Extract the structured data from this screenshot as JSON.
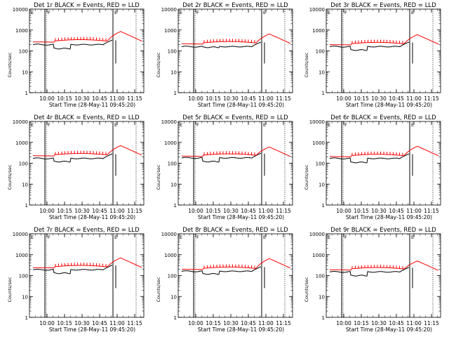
{
  "chart_data": [
    {
      "type": "line",
      "title": "Det 1r BLACK = Events, RED = LLD",
      "xlabel": "Start Time (28-May-11 09:45:20)",
      "ylabel": "Counts/sec",
      "yscale": "log",
      "ylim": [
        1,
        10000
      ],
      "xlim": [
        9.75,
        11.38
      ],
      "xticks": [
        "10:00",
        "10:15",
        "10:30",
        "10:45",
        "11:00",
        "11:15"
      ],
      "yticks": [
        "1",
        "10",
        "100",
        "1000",
        "10000"
      ],
      "flags": [
        "E",
        "F",
        "E"
      ],
      "series": [
        {
          "color": "#000000",
          "base": 200,
          "step_low": 130
        },
        {
          "color": "#ff0000",
          "base": 270,
          "peak": 850
        }
      ]
    },
    {
      "type": "line",
      "title": "Det 2r BLACK = Events, RED = LLD",
      "xlabel": "Start Time (28-May-11 09:45:20)",
      "ylabel": "Counts/sec",
      "yscale": "log",
      "ylim": [
        1,
        10000
      ],
      "xlim": [
        9.75,
        11.38
      ],
      "xticks": [
        "10:00",
        "10:15",
        "10:30",
        "10:45",
        "11:00",
        "11:15"
      ],
      "yticks": [
        "1",
        "10",
        "100",
        "1000",
        "10000"
      ],
      "flags": [
        "E",
        "F",
        "E"
      ],
      "series": [
        {
          "color": "#000000",
          "base": 160,
          "step_low": 150
        },
        {
          "color": "#ff0000",
          "base": 220,
          "peak": 650
        }
      ]
    },
    {
      "type": "line",
      "title": "Det 3r BLACK = Events, RED = LLD",
      "xlabel": "Start Time (28-May-11 09:45:20)",
      "ylabel": "Counts/sec",
      "yscale": "log",
      "ylim": [
        1,
        10000
      ],
      "xlim": [
        9.75,
        11.38
      ],
      "xticks": [
        "10:00",
        "10:15",
        "10:30",
        "10:45",
        "11:00",
        "11:15"
      ],
      "yticks": [
        "1",
        "10",
        "100",
        "1000",
        "10000"
      ],
      "flags": [
        "E",
        "F",
        "E"
      ],
      "series": [
        {
          "color": "#000000",
          "base": 160,
          "step_low": 110
        },
        {
          "color": "#ff0000",
          "base": 200,
          "peak": 600
        }
      ]
    },
    {
      "type": "line",
      "title": "Det 4r BLACK = Events, RED = LLD",
      "xlabel": "Start Time (28-May-11 09:45:20)",
      "ylabel": "Counts/sec",
      "yscale": "log",
      "ylim": [
        1,
        10000
      ],
      "xlim": [
        9.75,
        11.38
      ],
      "xticks": [
        "10:00",
        "10:15",
        "10:30",
        "10:45",
        "11:00",
        "11:15"
      ],
      "yticks": [
        "1",
        "10",
        "100",
        "1000",
        "10000"
      ],
      "flags": [
        "E",
        "F",
        "E"
      ],
      "series": [
        {
          "color": "#000000",
          "base": 170,
          "step_low": 120
        },
        {
          "color": "#ff0000",
          "base": 230,
          "peak": 700
        }
      ]
    },
    {
      "type": "line",
      "title": "Det 5r BLACK = Events, RED = LLD",
      "xlabel": "Start Time (28-May-11 09:45:20)",
      "ylabel": "Counts/sec",
      "yscale": "log",
      "ylim": [
        1,
        10000
      ],
      "xlim": [
        9.75,
        11.38
      ],
      "xticks": [
        "10:00",
        "10:15",
        "10:30",
        "10:45",
        "11:00",
        "11:15"
      ],
      "yticks": [
        "1",
        "10",
        "100",
        "1000",
        "10000"
      ],
      "flags": [
        "E",
        "F",
        "E"
      ],
      "series": [
        {
          "color": "#000000",
          "base": 180,
          "step_low": 120
        },
        {
          "color": "#ff0000",
          "base": 220,
          "peak": 600
        }
      ]
    },
    {
      "type": "line",
      "title": "Det 6r BLACK = Events, RED = LLD",
      "xlabel": "Start Time (28-May-11 09:45:20)",
      "ylabel": "Counts/sec",
      "yscale": "log",
      "ylim": [
        1,
        10000
      ],
      "xlim": [
        9.75,
        11.38
      ],
      "xticks": [
        "10:00",
        "10:15",
        "10:30",
        "10:45",
        "11:00",
        "11:15"
      ],
      "yticks": [
        "1",
        "10",
        "100",
        "1000",
        "10000"
      ],
      "flags": [
        "E",
        "F",
        "E"
      ],
      "series": [
        {
          "color": "#000000",
          "base": 170,
          "step_low": 110
        },
        {
          "color": "#ff0000",
          "base": 210,
          "peak": 650
        }
      ]
    },
    {
      "type": "line",
      "title": "Det 7r BLACK = Events, RED = LLD",
      "xlabel": "Start Time (28-May-11 09:45:20)",
      "ylabel": "Counts/sec",
      "yscale": "log",
      "ylim": [
        1,
        10000
      ],
      "xlim": [
        9.75,
        11.38
      ],
      "xticks": [
        "10:00",
        "10:15",
        "10:30",
        "10:45",
        "11:00",
        "11:15"
      ],
      "yticks": [
        "1",
        "10",
        "100",
        "1000",
        "10000"
      ],
      "flags": [
        "E",
        "F",
        "E"
      ],
      "series": [
        {
          "color": "#000000",
          "base": 190,
          "step_low": 130
        },
        {
          "color": "#ff0000",
          "base": 240,
          "peak": 700
        }
      ]
    },
    {
      "type": "line",
      "title": "Det 8r BLACK = Events, RED = LLD",
      "xlabel": "Start Time (28-May-11 09:45:20)",
      "ylabel": "Counts/sec",
      "yscale": "log",
      "ylim": [
        1,
        10000
      ],
      "xlim": [
        9.75,
        11.38
      ],
      "xticks": [
        "10:00",
        "10:15",
        "10:30",
        "10:45",
        "11:00",
        "11:15"
      ],
      "yticks": [
        "1",
        "10",
        "100",
        "1000",
        "10000"
      ],
      "flags": [
        "E",
        "F",
        "E"
      ],
      "series": [
        {
          "color": "#000000",
          "base": 160,
          "step_low": 120
        },
        {
          "color": "#ff0000",
          "base": 200,
          "peak": 650
        }
      ]
    },
    {
      "type": "line",
      "title": "Det 9r BLACK = Events, RED = LLD",
      "xlabel": "Start Time (28-May-11 09:45:20)",
      "ylabel": "Counts/sec",
      "yscale": "log",
      "ylim": [
        1,
        10000
      ],
      "xlim": [
        9.75,
        11.38
      ],
      "xticks": [
        "10:00",
        "10:15",
        "10:30",
        "10:45",
        "11:00",
        "11:15"
      ],
      "yticks": [
        "1",
        "10",
        "100",
        "1000",
        "10000"
      ],
      "flags": [
        "E",
        "F",
        "E"
      ],
      "series": [
        {
          "color": "#000000",
          "base": 150,
          "step_low": 100
        },
        {
          "color": "#ff0000",
          "base": 190,
          "peak": 500
        }
      ]
    }
  ]
}
